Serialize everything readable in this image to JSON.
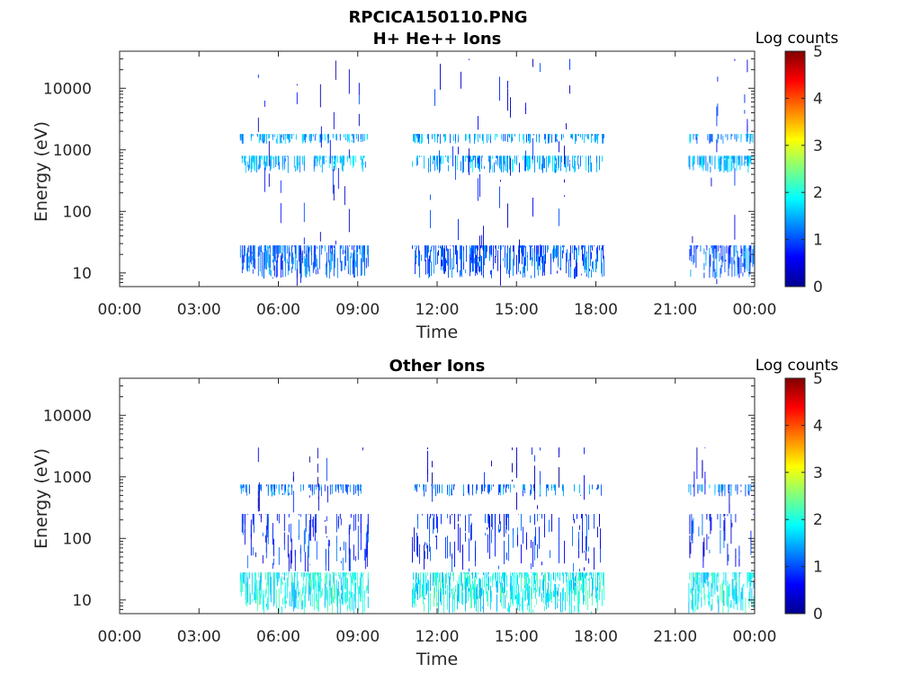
{
  "figure_title": "RPCICA150110.PNG",
  "chart_data": [
    {
      "type": "heatmap",
      "title": "H+ He++ Ions",
      "xlabel": "Time",
      "ylabel": "Energy (eV)",
      "x_ticks": [
        "00:00",
        "03:00",
        "06:00",
        "09:00",
        "12:00",
        "15:00",
        "18:00",
        "21:00",
        "00:00"
      ],
      "x_range_hours": [
        0,
        24
      ],
      "y_scale": "log",
      "y_range": [
        6,
        40000
      ],
      "y_ticks": [
        10,
        100,
        1000,
        10000
      ],
      "y_tick_labels": [
        "10",
        "100",
        "1000",
        "10000"
      ],
      "colorbar": {
        "label": "Log counts",
        "range": [
          0,
          5
        ],
        "ticks": [
          "0",
          "1",
          "2",
          "3",
          "4",
          "5"
        ],
        "colormap": "jet"
      },
      "data_intervals_hours": [
        [
          4.55,
          9.4
        ],
        [
          11.05,
          18.3
        ],
        [
          21.5,
          24.0
        ]
      ],
      "bands": [
        {
          "energy_range_eV": [
            8,
            28
          ],
          "level": 1.1,
          "density": 0.75
        },
        {
          "energy_range_eV": [
            420,
            800
          ],
          "level": 1.5,
          "density": 0.55
        },
        {
          "energy_range_eV": [
            1250,
            1800
          ],
          "level": 1.4,
          "density": 0.5
        },
        {
          "energy_range_eV": [
            6,
            30000
          ],
          "level": 0.6,
          "density": 0.12
        }
      ]
    },
    {
      "type": "heatmap",
      "title": "Other Ions",
      "xlabel": "Time",
      "ylabel": "Energy (eV)",
      "x_ticks": [
        "00:00",
        "03:00",
        "06:00",
        "09:00",
        "12:00",
        "15:00",
        "18:00",
        "21:00",
        "00:00"
      ],
      "x_range_hours": [
        0,
        24
      ],
      "y_scale": "log",
      "y_range": [
        6,
        40000
      ],
      "y_ticks": [
        10,
        100,
        1000,
        10000
      ],
      "y_tick_labels": [
        "10",
        "100",
        "1000",
        "10000"
      ],
      "colorbar": {
        "label": "Log counts",
        "range": [
          0,
          5
        ],
        "ticks": [
          "0",
          "1",
          "2",
          "3",
          "4",
          "5"
        ],
        "colormap": "jet"
      },
      "data_intervals_hours": [
        [
          4.55,
          9.4
        ],
        [
          11.05,
          18.3
        ],
        [
          21.5,
          24.0
        ]
      ],
      "bands": [
        {
          "energy_range_eV": [
            6,
            28
          ],
          "level": 1.9,
          "density": 0.85
        },
        {
          "energy_range_eV": [
            28,
            250
          ],
          "level": 0.8,
          "density": 0.4
        },
        {
          "energy_range_eV": [
            480,
            750
          ],
          "level": 1.2,
          "density": 0.35
        },
        {
          "energy_range_eV": [
            250,
            3000
          ],
          "level": 0.5,
          "density": 0.05
        }
      ]
    }
  ]
}
